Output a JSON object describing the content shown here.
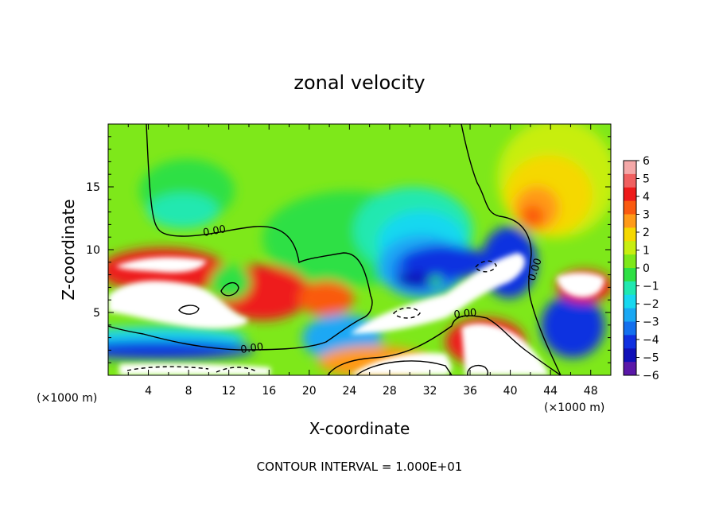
{
  "chart_data": {
    "type": "heatmap",
    "title": "zonal velocity",
    "xlabel": "X-coordinate",
    "ylabel": "Z-coordinate",
    "x_unit_label": "(×1000 m)",
    "y_unit_label": "(×1000 m)",
    "xlim": [
      0,
      50
    ],
    "ylim": [
      0,
      20
    ],
    "x_ticks": [
      4,
      8,
      12,
      16,
      20,
      24,
      28,
      32,
      36,
      40,
      44,
      48
    ],
    "y_ticks": [
      5,
      10,
      15
    ],
    "colorbar": {
      "ticks": [
        6,
        5,
        4,
        3,
        2,
        1,
        0,
        -1,
        -2,
        -3,
        -4,
        -5,
        -6
      ],
      "colors": [
        "#f4a8a8",
        "#f06060",
        "#ee1a1a",
        "#fa5a10",
        "#ff9a18",
        "#f5d800",
        "#c8ee10",
        "#7ee81a",
        "#2ee044",
        "#20e8b0",
        "#18d8f0",
        "#1aa8f4",
        "#1470ee",
        "#1030e0",
        "#1010b8",
        "#5a18a8"
      ]
    },
    "contour_labels": [
      "0.00",
      "0.00",
      "0.00",
      "0.00"
    ],
    "note": "CONTOUR INTERVAL = 1.000E+01"
  }
}
